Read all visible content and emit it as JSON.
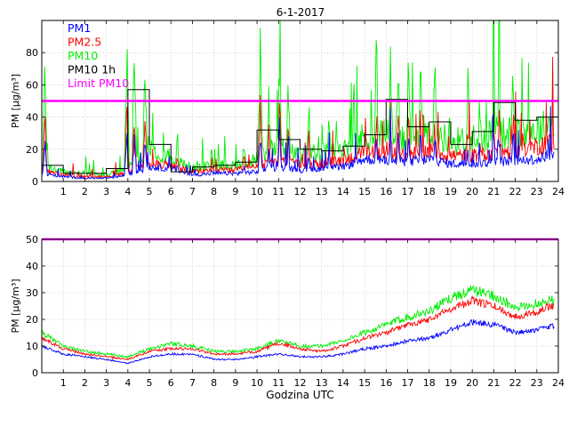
{
  "title": "6-1-2017",
  "colors": {
    "pm1": "#0000ff",
    "pm25": "#ff0000",
    "pm10": "#00ee00",
    "pm10_1h": "#000000",
    "limit": "#ff00ff"
  },
  "chart_data": [
    {
      "type": "line",
      "title": "6-1-2017",
      "ylabel": "PM [µg/m³]",
      "xlabel": "",
      "xlim": [
        0,
        24
      ],
      "ylim": [
        0,
        100
      ],
      "grid": true,
      "x_ticks": [
        1,
        2,
        3,
        4,
        5,
        6,
        7,
        8,
        9,
        10,
        11,
        12,
        13,
        14,
        15,
        16,
        17,
        18,
        19,
        20,
        21,
        22,
        23,
        24
      ],
      "y_ticks": [
        0,
        20,
        40,
        60,
        80
      ],
      "legend": [
        "PM1",
        "PM2.5",
        "PM10",
        "PM10 1h",
        "Limit PM10"
      ],
      "legend_position": "top-left",
      "limit": 50,
      "hours": [
        0,
        1,
        2,
        3,
        4,
        5,
        6,
        7,
        8,
        9,
        10,
        11,
        12,
        13,
        14,
        15,
        16,
        17,
        18,
        19,
        20,
        21,
        22,
        23,
        24
      ],
      "series": [
        {
          "name": "PM1",
          "values": [
            5,
            3,
            2,
            2,
            4,
            9,
            8,
            4,
            5,
            5,
            6,
            9,
            7,
            8,
            9,
            14,
            13,
            12,
            14,
            11,
            11,
            12,
            13,
            14,
            18
          ]
        },
        {
          "name": "PM2.5",
          "values": [
            7,
            4,
            3,
            3,
            5,
            12,
            10,
            6,
            7,
            7,
            9,
            13,
            10,
            11,
            13,
            18,
            18,
            17,
            19,
            16,
            16,
            18,
            19,
            22,
            26
          ]
        },
        {
          "name": "PM10",
          "values": [
            10,
            6,
            5,
            4,
            8,
            20,
            16,
            8,
            10,
            10,
            14,
            22,
            16,
            18,
            20,
            28,
            30,
            28,
            32,
            25,
            26,
            30,
            30,
            32,
            36
          ]
        },
        {
          "name": "PM10 1h",
          "values": [
            10,
            5,
            5,
            8,
            57,
            23,
            6,
            9,
            10,
            12,
            32,
            26,
            20,
            19,
            22,
            29,
            51,
            34,
            37,
            23,
            31,
            49,
            38,
            40
          ]
        }
      ],
      "spikes": [
        {
          "x": 0.15,
          "peak": 85
        },
        {
          "x": 3.95,
          "peak": 100
        },
        {
          "x": 4.3,
          "peak": 100
        },
        {
          "x": 4.8,
          "peak": 100
        },
        {
          "x": 6.3,
          "peak": 35
        },
        {
          "x": 7.9,
          "peak": 30
        },
        {
          "x": 9.4,
          "peak": 35
        },
        {
          "x": 10.15,
          "peak": 100
        },
        {
          "x": 10.55,
          "peak": 70
        },
        {
          "x": 11.05,
          "peak": 100
        },
        {
          "x": 11.45,
          "peak": 80
        },
        {
          "x": 12.4,
          "peak": 65
        },
        {
          "x": 13.35,
          "peak": 55
        },
        {
          "x": 15.55,
          "peak": 100
        },
        {
          "x": 16.2,
          "peak": 100
        },
        {
          "x": 16.55,
          "peak": 100
        },
        {
          "x": 17.05,
          "peak": 95
        },
        {
          "x": 17.6,
          "peak": 100
        },
        {
          "x": 18.25,
          "peak": 100
        },
        {
          "x": 19.8,
          "peak": 80
        },
        {
          "x": 20.35,
          "peak": 65
        },
        {
          "x": 21.0,
          "peak": 100
        },
        {
          "x": 21.25,
          "peak": 100
        },
        {
          "x": 21.9,
          "peak": 100
        },
        {
          "x": 22.35,
          "peak": 60
        },
        {
          "x": 23.55,
          "peak": 52
        }
      ]
    },
    {
      "type": "line",
      "title": "",
      "ylabel": "PM [µg/m³]",
      "xlabel": "Godzina UTC",
      "xlim": [
        0,
        24
      ],
      "ylim": [
        0,
        50
      ],
      "grid": true,
      "x_ticks": [
        1,
        2,
        3,
        4,
        5,
        6,
        7,
        8,
        9,
        10,
        11,
        12,
        13,
        14,
        15,
        16,
        17,
        18,
        19,
        20,
        21,
        22,
        23,
        24
      ],
      "y_ticks": [
        0,
        10,
        20,
        30,
        40,
        50
      ],
      "limit": 50,
      "hours": [
        0,
        1,
        2,
        3,
        4,
        5,
        6,
        7,
        8,
        9,
        10,
        11,
        12,
        13,
        14,
        15,
        16,
        17,
        18,
        19,
        20,
        21,
        22,
        23,
        24
      ],
      "series": [
        {
          "name": "PM1",
          "values": [
            10,
            7,
            6,
            5,
            3.5,
            6,
            7,
            7,
            5,
            5,
            6,
            7,
            6,
            6,
            7,
            9,
            10,
            12,
            13,
            16,
            19,
            18,
            15,
            16,
            18
          ]
        },
        {
          "name": "PM2.5",
          "values": [
            13,
            9,
            7,
            6,
            5,
            8,
            9,
            9,
            7,
            7,
            8,
            11,
            9,
            8,
            10,
            13,
            15,
            18,
            20,
            24,
            27,
            25,
            21,
            23,
            26
          ]
        },
        {
          "name": "PM10",
          "values": [
            15,
            10,
            8,
            7,
            6,
            9,
            11,
            10,
            8,
            8,
            9,
            12,
            10,
            10,
            12,
            15,
            18,
            21,
            23,
            28,
            31,
            29,
            24,
            26,
            28
          ]
        }
      ]
    }
  ]
}
